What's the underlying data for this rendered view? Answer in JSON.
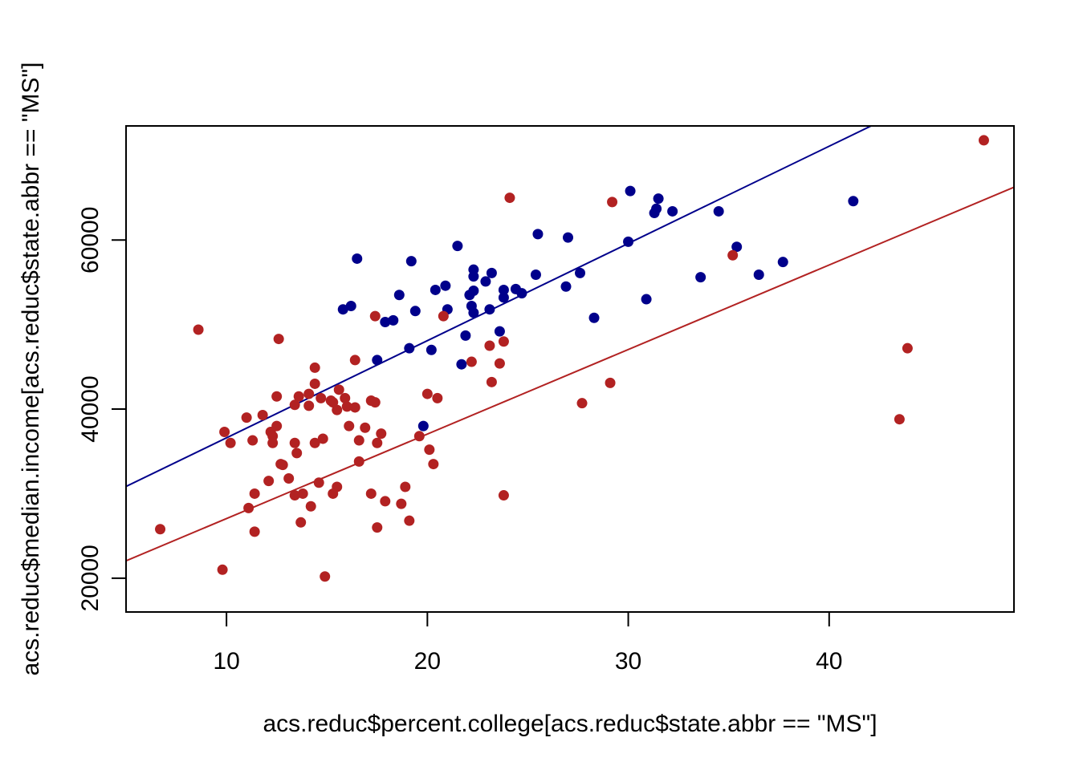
{
  "chart_data": {
    "type": "scatter",
    "title": "",
    "xlabel": "acs.reduc$percent.college[acs.reduc$state.abbr == \"MS\"]",
    "ylabel": "acs.reduc$median.income[acs.reduc$state.abbr == \"MS\"]",
    "xlim": [
      5,
      49.2
    ],
    "ylim": [
      16000,
      73500
    ],
    "xticks": [
      10,
      20,
      30,
      40
    ],
    "yticks": [
      20000,
      40000,
      60000
    ],
    "xtick_labels": [
      "10",
      "20",
      "30",
      "40"
    ],
    "ytick_labels": [
      "20000",
      "40000",
      "60000"
    ],
    "grid": false,
    "legend": "none",
    "series": [
      {
        "name": "blue group",
        "color": "#00008B",
        "points": [
          [
            15.8,
            51.8
          ],
          [
            16.2,
            52.2
          ],
          [
            16.5,
            57.8
          ],
          [
            17.5,
            45.8
          ],
          [
            17.9,
            50.3
          ],
          [
            18.3,
            50.5
          ],
          [
            18.6,
            53.5
          ],
          [
            19.1,
            47.2
          ],
          [
            19.2,
            57.5
          ],
          [
            19.4,
            51.6
          ],
          [
            19.8,
            38
          ],
          [
            20.2,
            47
          ],
          [
            20.4,
            54.1
          ],
          [
            20.9,
            54.6
          ],
          [
            21.0,
            51.8
          ],
          [
            21.5,
            59.3
          ],
          [
            21.7,
            45.3
          ],
          [
            21.9,
            48.7
          ],
          [
            22.1,
            53.5
          ],
          [
            22.2,
            52.2
          ],
          [
            22.3,
            51.4
          ],
          [
            22.3,
            54
          ],
          [
            22.3,
            55.7
          ],
          [
            22.3,
            56.5
          ],
          [
            22.9,
            55.1
          ],
          [
            23.1,
            51.8
          ],
          [
            23.2,
            56.1
          ],
          [
            23.6,
            49.2
          ],
          [
            23.8,
            53.2
          ],
          [
            23.8,
            54.1
          ],
          [
            24.4,
            54.2
          ],
          [
            24.7,
            53.7
          ],
          [
            25.4,
            55.9
          ],
          [
            25.5,
            60.7
          ],
          [
            26.9,
            54.5
          ],
          [
            27.0,
            60.3
          ],
          [
            27.6,
            56.1
          ],
          [
            28.3,
            50.8
          ],
          [
            30.0,
            59.8
          ],
          [
            30.1,
            65.8
          ],
          [
            30.9,
            53
          ],
          [
            31.3,
            63.2
          ],
          [
            31.4,
            63.7
          ],
          [
            31.5,
            64.9
          ],
          [
            32.2,
            63.4
          ],
          [
            33.6,
            55.6
          ],
          [
            34.5,
            63.4
          ],
          [
            35.4,
            59.2
          ],
          [
            36.5,
            55.9
          ],
          [
            37.7,
            57.4
          ],
          [
            41.2,
            64.6
          ]
        ]
      },
      {
        "name": "red group",
        "color": "#B22222",
        "points": [
          [
            6.7,
            25.8
          ],
          [
            8.6,
            49.4
          ],
          [
            9.8,
            21
          ],
          [
            9.9,
            37.3
          ],
          [
            10.2,
            36
          ],
          [
            11.0,
            39
          ],
          [
            11.1,
            28.3
          ],
          [
            11.3,
            36.3
          ],
          [
            11.4,
            30
          ],
          [
            11.4,
            25.5
          ],
          [
            11.8,
            39.3
          ],
          [
            12.1,
            31.5
          ],
          [
            12.2,
            37.3
          ],
          [
            12.3,
            36.8
          ],
          [
            12.3,
            36
          ],
          [
            12.5,
            41.5
          ],
          [
            12.5,
            38
          ],
          [
            12.6,
            48.3
          ],
          [
            12.7,
            33.5
          ],
          [
            12.8,
            33.4
          ],
          [
            13.1,
            31.8
          ],
          [
            13.4,
            40.5
          ],
          [
            13.4,
            36
          ],
          [
            13.4,
            29.8
          ],
          [
            13.5,
            34.8
          ],
          [
            13.6,
            41.5
          ],
          [
            13.7,
            26.6
          ],
          [
            13.8,
            30
          ],
          [
            14.1,
            41.8
          ],
          [
            14.1,
            40.4
          ],
          [
            14.2,
            28.5
          ],
          [
            14.4,
            44.9
          ],
          [
            14.4,
            43
          ],
          [
            14.4,
            36
          ],
          [
            14.6,
            31.3
          ],
          [
            14.7,
            41.3
          ],
          [
            14.8,
            36.5
          ],
          [
            14.9,
            20.2
          ],
          [
            15.2,
            41
          ],
          [
            15.3,
            40.8
          ],
          [
            15.3,
            30
          ],
          [
            15.5,
            39.9
          ],
          [
            15.5,
            30.8
          ],
          [
            15.6,
            42.3
          ],
          [
            15.9,
            41.3
          ],
          [
            16.0,
            40.3
          ],
          [
            16.1,
            38
          ],
          [
            16.4,
            40.2
          ],
          [
            16.4,
            45.8
          ],
          [
            16.6,
            36.3
          ],
          [
            16.6,
            33.8
          ],
          [
            16.9,
            37.8
          ],
          [
            17.2,
            30
          ],
          [
            17.2,
            41
          ],
          [
            17.4,
            40.8
          ],
          [
            17.4,
            51
          ],
          [
            17.5,
            36
          ],
          [
            17.5,
            26
          ],
          [
            17.7,
            37.1
          ],
          [
            17.9,
            29.1
          ],
          [
            18.7,
            28.8
          ],
          [
            18.9,
            30.8
          ],
          [
            19.1,
            26.8
          ],
          [
            19.6,
            36.8
          ],
          [
            20.0,
            41.8
          ],
          [
            20.1,
            35.2
          ],
          [
            20.3,
            33.5
          ],
          [
            20.5,
            41.3
          ],
          [
            20.8,
            51
          ],
          [
            22.2,
            45.6
          ],
          [
            23.1,
            47.5
          ],
          [
            23.2,
            43.2
          ],
          [
            23.6,
            45.4
          ],
          [
            23.8,
            48
          ],
          [
            23.8,
            29.8
          ],
          [
            24.1,
            65
          ],
          [
            27.7,
            40.7
          ],
          [
            29.1,
            43.1
          ],
          [
            29.2,
            64.5
          ],
          [
            35.2,
            58.2
          ],
          [
            43.5,
            38.8
          ],
          [
            43.9,
            47.2
          ],
          [
            47.7,
            71.8
          ]
        ]
      }
    ],
    "lines": [
      {
        "name": "blue group fit",
        "color": "#00008B",
        "intercept": 25100,
        "slope": 1150
      },
      {
        "name": "red group fit",
        "color": "#B22222",
        "intercept": 17050,
        "slope": 1000
      }
    ]
  }
}
